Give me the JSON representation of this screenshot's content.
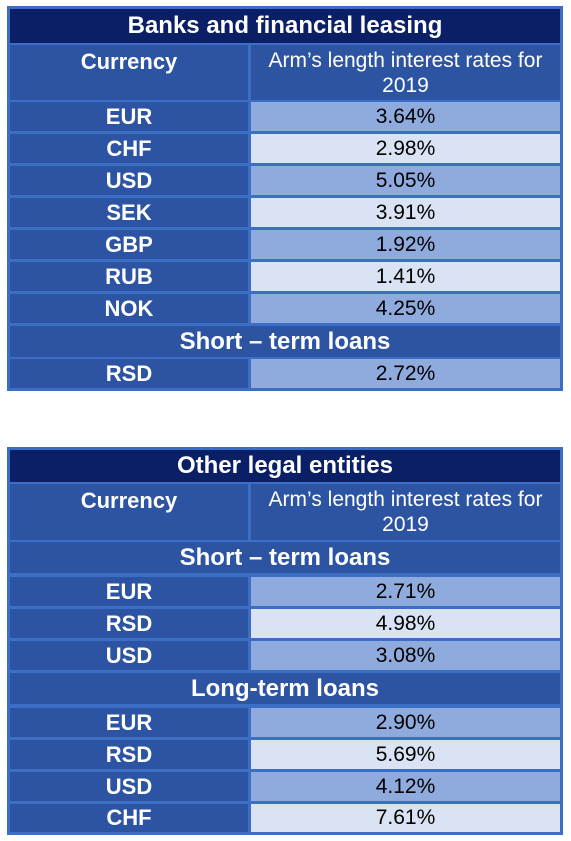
{
  "table1": {
    "title": "Banks and financial leasing",
    "header": {
      "currency": "Currency",
      "rate": "Arm’s length interest rates for 2019"
    },
    "rows": [
      {
        "currency": "EUR",
        "rate": "3.64%"
      },
      {
        "currency": "CHF",
        "rate": "2.98%"
      },
      {
        "currency": "USD",
        "rate": "5.05%"
      },
      {
        "currency": "SEK",
        "rate": "3.91%"
      },
      {
        "currency": "GBP",
        "rate": "1.92%"
      },
      {
        "currency": "RUB",
        "rate": "1.41%"
      },
      {
        "currency": "NOK",
        "rate": "4.25%"
      }
    ],
    "section": "Short – term loans",
    "section_rows": [
      {
        "currency": "RSD",
        "rate": "2.72%"
      }
    ]
  },
  "table2": {
    "title": "Other legal entities",
    "header": {
      "currency": "Currency",
      "rate": "Arm’s length interest rates for 2019"
    },
    "section1": "Short – term loans",
    "section1_rows": [
      {
        "currency": "EUR",
        "rate": "2.71%"
      },
      {
        "currency": "RSD",
        "rate": "4.98%"
      },
      {
        "currency": "USD",
        "rate": "3.08%"
      }
    ],
    "section2": "Long-term loans",
    "section2_rows": [
      {
        "currency": "EUR",
        "rate": "2.90%"
      },
      {
        "currency": "RSD",
        "rate": "5.69%"
      },
      {
        "currency": "USD",
        "rate": "4.12%"
      },
      {
        "currency": "CHF",
        "rate": "7.61%"
      }
    ]
  }
}
